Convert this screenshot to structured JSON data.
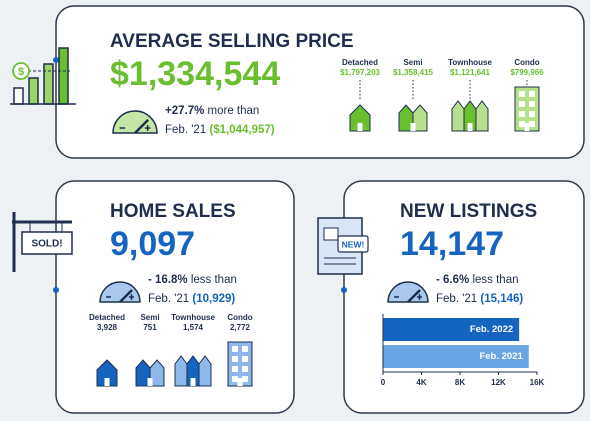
{
  "average_selling_price": {
    "icon_text": "$",
    "title": "AVERAGE SELLING PRICE",
    "value": "$1,334,544",
    "change": "+27.7%",
    "change_text": "more than",
    "prev_label": "Feb. '21",
    "prev_value": "($1,044,957)",
    "types": [
      {
        "name": "Detached",
        "value": "$1,797,203"
      },
      {
        "name": "Semi",
        "value": "$1,358,415"
      },
      {
        "name": "Townhouse",
        "value": "$1,121,641"
      },
      {
        "name": "Condo",
        "value": "$799,966"
      }
    ]
  },
  "home_sales": {
    "sign": "SOLD!",
    "title": "HOME SALES",
    "value": "9,097",
    "change": "- 16.8%",
    "change_text": "less than",
    "prev_label": "Feb. '21",
    "prev_value": "(10,929)",
    "types": [
      {
        "name": "Detached",
        "value": "3,928"
      },
      {
        "name": "Semi",
        "value": "751"
      },
      {
        "name": "Townhouse",
        "value": "1,574"
      },
      {
        "name": "Condo",
        "value": "2,772"
      }
    ]
  },
  "new_listings": {
    "badge": "NEW!",
    "title": "NEW LISTINGS",
    "value": "14,147",
    "change": "- 6.6%",
    "change_text": "less than",
    "prev_label": "Feb. '21",
    "prev_value": "(15,146)"
  },
  "chart_data": {
    "type": "bar",
    "orientation": "horizontal",
    "categories": [
      "Feb. 2022",
      "Feb. 2021"
    ],
    "values": [
      14147,
      15146
    ],
    "colors": [
      "#1565c0",
      "#6aa6e3"
    ],
    "xlim": [
      0,
      16000
    ],
    "xticks": [
      0,
      {
        "value": 4000,
        "label": "4K"
      },
      {
        "value": 8000,
        "label": "8K"
      },
      {
        "value": 12000,
        "label": "12K"
      },
      {
        "value": 16000,
        "label": "16K"
      }
    ]
  }
}
